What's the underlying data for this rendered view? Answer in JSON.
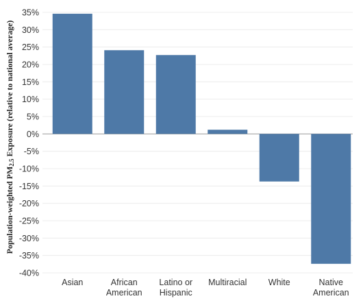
{
  "chart_data": {
    "type": "bar",
    "title": "",
    "xlabel": "",
    "ylabel": "Population-weighted PM2.5 Exposure (relative to national average)",
    "categories": [
      [
        "Asian"
      ],
      [
        "African",
        "American"
      ],
      [
        "Latino or",
        "Hispanic"
      ],
      [
        "Multiracial"
      ],
      [
        "White"
      ],
      [
        "Native",
        "American"
      ]
    ],
    "values": [
      34.6,
      24.1,
      22.7,
      1.2,
      -13.7,
      -37.4
    ],
    "ylim": [
      -40,
      35
    ],
    "yticks": [
      35,
      30,
      25,
      20,
      15,
      10,
      5,
      0,
      -5,
      -10,
      -15,
      -20,
      -25,
      -30,
      -35,
      -40
    ],
    "ytick_labels": [
      "35%",
      "30%",
      "25%",
      "20%",
      "15%",
      "10%",
      "5%",
      "0%",
      "-5%",
      "-10%",
      "-15%",
      "-20%",
      "-25%",
      "-30%",
      "-35%",
      "-40%"
    ],
    "bar_color": "#4e79a7",
    "grid": true,
    "legend": "none"
  }
}
